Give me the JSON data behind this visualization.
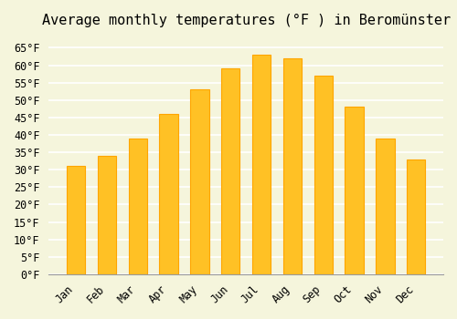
{
  "title": "Average monthly temperatures (°F ) in Beromünster",
  "months": [
    "Jan",
    "Feb",
    "Mar",
    "Apr",
    "May",
    "Jun",
    "Jul",
    "Aug",
    "Sep",
    "Oct",
    "Nov",
    "Dec"
  ],
  "values": [
    31,
    34,
    39,
    46,
    53,
    59,
    63,
    62,
    57,
    48,
    39,
    33
  ],
  "bar_color": "#FFC125",
  "bar_edge_color": "#FFA500",
  "background_color": "#F5F5DC",
  "grid_color": "#FFFFFF",
  "ylim": [
    0,
    68
  ],
  "yticks": [
    0,
    5,
    10,
    15,
    20,
    25,
    30,
    35,
    40,
    45,
    50,
    55,
    60,
    65
  ],
  "ylabel_format": "°F",
  "title_fontsize": 11,
  "tick_fontsize": 8.5,
  "font_family": "monospace"
}
